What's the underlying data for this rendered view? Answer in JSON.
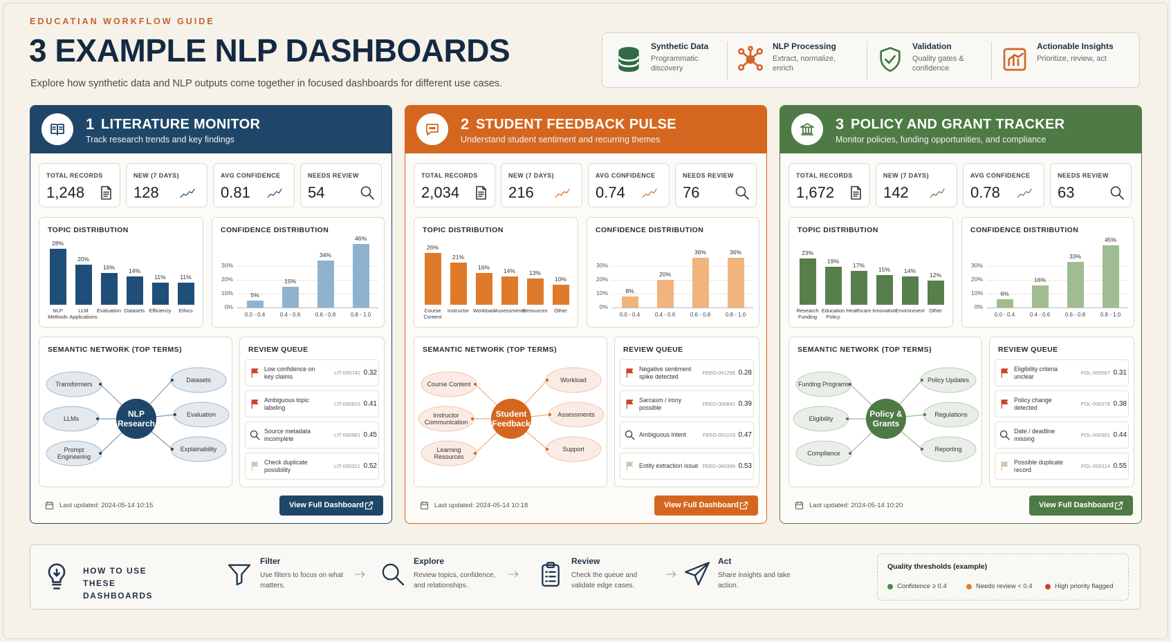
{
  "header": {
    "eyebrow": "EDUCATIAN WORKFLOW GUIDE",
    "title": "3 EXAMPLE NLP DASHBOARDS",
    "subtitle": "Explore how synthetic data and NLP outputs come together in focused dashboards for different use cases."
  },
  "pipeline": [
    {
      "title": "Synthetic Data",
      "desc": "Programmatic discovery"
    },
    {
      "title": "NLP Processing",
      "desc": "Extract, normalize, enrich"
    },
    {
      "title": "Validation",
      "desc": "Quality gates & confidence"
    },
    {
      "title": "Actionable Insights",
      "desc": "Prioritize, review, act"
    }
  ],
  "dashboards": [
    {
      "number": "1",
      "title": "LITERATURE MONITOR",
      "subtitle": "Track research trends and key findings",
      "color": "#1f4668",
      "metrics": [
        {
          "label": "TOTAL RECORDS",
          "value": "1,248"
        },
        {
          "label": "NEW (7 DAYS)",
          "value": "128"
        },
        {
          "label": "AVG CONFIDENCE",
          "value": "0.81"
        },
        {
          "label": "NEEDS REVIEW",
          "value": "54"
        }
      ],
      "topic_chart": {
        "type": "bar",
        "title": "TOPIC DISTRIBUTION",
        "color": "#1f4e79",
        "categories": [
          "NLP Methods",
          "LLM Applications",
          "Evaluation",
          "Datasets",
          "Efficiency",
          "Ethics"
        ],
        "values": [
          28,
          20,
          16,
          14,
          11,
          11
        ],
        "value_labels": [
          "28%",
          "20%",
          "16%",
          "14%",
          "11%",
          "11%"
        ]
      },
      "confidence_chart": {
        "type": "bar",
        "title": "CONFIDENCE DISTRIBUTION",
        "color": "#8fb3cf",
        "categories": [
          "0.0 - 0.4",
          "0.4 - 0.6",
          "0.6 - 0.8",
          "0.8 - 1.0"
        ],
        "values": [
          5,
          15,
          34,
          46
        ],
        "value_labels": [
          "5%",
          "15%",
          "34%",
          "46%"
        ],
        "ylim": [
          0,
          50
        ],
        "yticks": [
          {
            "value": 0,
            "label": "0%"
          },
          {
            "value": 10,
            "label": "10%"
          },
          {
            "value": 20,
            "label": "20%"
          },
          {
            "value": 30,
            "label": "30%"
          }
        ]
      },
      "network": {
        "title": "SEMANTIC NETWORK (TOP TERMS)",
        "center": "NLP Research",
        "nodes": [
          "Transformers",
          "LLMs",
          "Prompt Engineering",
          "Datasets",
          "Evaluation",
          "Explainability"
        ]
      },
      "queue": {
        "title": "REVIEW QUEUE",
        "items": [
          {
            "text": "Low confidence on key claims",
            "id": "LIT-000742",
            "score": "0.32"
          },
          {
            "text": "Ambiguous topic labeling",
            "id": "LIT-000615",
            "score": "0.41"
          },
          {
            "text": "Source metadata incomplete",
            "id": "LIT-000981",
            "score": "0.45"
          },
          {
            "text": "Check duplicate possibility",
            "id": "LIT-000321",
            "score": "0.52"
          }
        ]
      },
      "updated": "Last updated: 2024-05-14 10:15",
      "button": "View Full Dashboard"
    },
    {
      "number": "2",
      "title": "STUDENT FEEDBACK PULSE",
      "subtitle": "Understand student sentiment and recurring themes",
      "color": "#d5661f",
      "metrics": [
        {
          "label": "TOTAL RECORDS",
          "value": "2,034"
        },
        {
          "label": "NEW (7 DAYS)",
          "value": "216"
        },
        {
          "label": "AVG CONFIDENCE",
          "value": "0.74"
        },
        {
          "label": "NEEDS REVIEW",
          "value": "76"
        }
      ],
      "topic_chart": {
        "type": "bar",
        "title": "TOPIC DISTRIBUTION",
        "color": "#de7a2a",
        "categories": [
          "Course Content",
          "Instructor",
          "Workload",
          "Assessments",
          "Resources",
          "Other"
        ],
        "values": [
          26,
          21,
          16,
          14,
          13,
          10
        ],
        "value_labels": [
          "26%",
          "21%",
          "16%",
          "14%",
          "13%",
          "10%"
        ]
      },
      "confidence_chart": {
        "type": "bar",
        "title": "CONFIDENCE DISTRIBUTION",
        "color": "#f0b47c",
        "categories": [
          "0.0 - 0.4",
          "0.4 - 0.6",
          "0.6 - 0.8",
          "0.8 - 1.0"
        ],
        "values": [
          8,
          20,
          36,
          36
        ],
        "value_labels": [
          "8%",
          "20%",
          "36%",
          "36%"
        ],
        "ylim": [
          0,
          50
        ],
        "yticks": [
          {
            "value": 0,
            "label": "0%"
          },
          {
            "value": 10,
            "label": "10%"
          },
          {
            "value": 20,
            "label": "20%"
          },
          {
            "value": 30,
            "label": "30%"
          }
        ]
      },
      "network": {
        "title": "SEMANTIC NETWORK (TOP TERMS)",
        "center": "Student Feedback",
        "nodes": [
          "Course Content",
          "Instructor Communication",
          "Learning Resources",
          "Workload",
          "Assessments",
          "Support"
        ]
      },
      "queue": {
        "title": "REVIEW QUEUE",
        "items": [
          {
            "text": "Negative sentiment spike detected",
            "id": "FEED-001256",
            "score": "0.28"
          },
          {
            "text": "Sarcasm / irony possible",
            "id": "FEED-000842",
            "score": "0.39"
          },
          {
            "text": "Ambiguous intent",
            "id": "FEED-001103",
            "score": "0.47"
          },
          {
            "text": "Entity extraction issue",
            "id": "FEED-000399",
            "score": "0.53"
          }
        ]
      },
      "updated": "Last updated: 2024-05-14 10:18",
      "button": "View Full Dashboard"
    },
    {
      "number": "3",
      "title": "POLICY AND GRANT TRACKER",
      "subtitle": "Monitor policies, funding opportunities, and compliance",
      "color": "#4e7a45",
      "metrics": [
        {
          "label": "TOTAL RECORDS",
          "value": "1,672"
        },
        {
          "label": "NEW (7 DAYS)",
          "value": "142"
        },
        {
          "label": "AVG CONFIDENCE",
          "value": "0.78"
        },
        {
          "label": "NEEDS REVIEW",
          "value": "63"
        }
      ],
      "topic_chart": {
        "type": "bar",
        "title": "TOPIC DISTRIBUTION",
        "color": "#567f4b",
        "categories": [
          "Research Funding",
          "Education Policy",
          "Healthcare",
          "Innovation",
          "Environment",
          "Other"
        ],
        "values": [
          23,
          19,
          17,
          15,
          14,
          12
        ],
        "value_labels": [
          "23%",
          "19%",
          "17%",
          "15%",
          "14%",
          "12%"
        ]
      },
      "confidence_chart": {
        "type": "bar",
        "title": "CONFIDENCE DISTRIBUTION",
        "color": "#9fbd90",
        "categories": [
          "0.0 - 0.4",
          "0.4 - 0.6",
          "0.6 - 0.8",
          "0.8 - 1.0"
        ],
        "values": [
          6,
          16,
          33,
          45
        ],
        "value_labels": [
          "6%",
          "16%",
          "33%",
          "45%"
        ],
        "ylim": [
          0,
          50
        ],
        "yticks": [
          {
            "value": 0,
            "label": "0%"
          },
          {
            "value": 10,
            "label": "10%"
          },
          {
            "value": 20,
            "label": "20%"
          },
          {
            "value": 30,
            "label": "30%"
          }
        ]
      },
      "network": {
        "title": "SEMANTIC NETWORK (TOP TERMS)",
        "center": "Policy & Grants",
        "nodes": [
          "Funding Programs",
          "Eligibility",
          "Compliance",
          "Policy Updates",
          "Regulations",
          "Reporting"
        ]
      },
      "queue": {
        "title": "REVIEW QUEUE",
        "items": [
          {
            "text": "Eligibility criteria unclear",
            "id": "POL-000567",
            "score": "0.31"
          },
          {
            "text": "Policy change detected",
            "id": "POL-000278",
            "score": "0.38"
          },
          {
            "text": "Date / deadline missing",
            "id": "POL-000901",
            "score": "0.44"
          },
          {
            "text": "Possible duplicate record",
            "id": "POL-000114",
            "score": "0.55"
          }
        ]
      },
      "updated": "Last updated: 2024-05-14 10:20",
      "button": "View Full Dashboard"
    }
  ],
  "how_to": {
    "title": "HOW TO USE THESE DASHBOARDS",
    "steps": [
      {
        "title": "Filter",
        "desc": "Use filters to focus on what matters."
      },
      {
        "title": "Explore",
        "desc": "Review topics, confidence, and relationships."
      },
      {
        "title": "Review",
        "desc": "Check the queue and validate edge cases."
      },
      {
        "title": "Act",
        "desc": "Share insights and take action."
      }
    ],
    "thresholds": {
      "title": "Quality thresholds (example)",
      "items": [
        {
          "label": "Confidence ≥ 0.4",
          "color": "#4e8a45"
        },
        {
          "label": "Needs review < 0.4",
          "color": "#e0812c"
        },
        {
          "label": "High priority flagged",
          "color": "#c8442a"
        }
      ]
    }
  }
}
